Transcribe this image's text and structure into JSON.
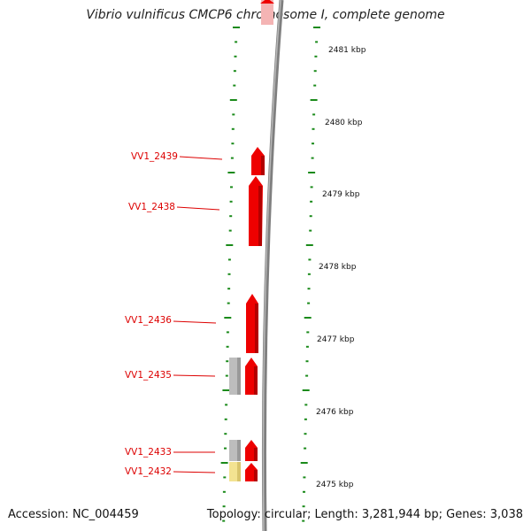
{
  "title": "Vibrio vulnificus CMCP6 chromosome I, complete genome",
  "accession": "Accession: NC_004459",
  "topology": "Topology: circular; Length: 3,281,944 bp; Genes: 3,038",
  "colors": {
    "gene_forward": "#ee0000",
    "gene_other": "#b8b8b8",
    "gene_yellow": "#f3e391",
    "label": "#dd0000",
    "tick": "#1a8a1a",
    "backbone": "#7a7a7a"
  },
  "scale_labels": [
    "2481 kbp",
    "2480 kbp",
    "2479 kbp",
    "2478 kbp",
    "2477 kbp",
    "2476 kbp",
    "2475 kbp"
  ],
  "genes": [
    {
      "id": "VV1_2439",
      "strand": "forward",
      "color": "red"
    },
    {
      "id": "VV1_2438",
      "strand": "forward",
      "color": "red"
    },
    {
      "id": "VV1_2436",
      "strand": "forward",
      "color": "red"
    },
    {
      "id": "VV1_2435",
      "strand": "forward",
      "color": "red"
    },
    {
      "id": "VV1_2433",
      "strand": "forward",
      "color": "red"
    },
    {
      "id": "VV1_2432",
      "strand": "forward",
      "color": "red"
    }
  ],
  "unlabeled_features": [
    {
      "name": "gray-block-2435",
      "color": "gray"
    },
    {
      "name": "gray-block-2433",
      "color": "gray"
    },
    {
      "name": "yellow-block-2432",
      "color": "yellow"
    },
    {
      "name": "top-red-block",
      "color": "red"
    }
  ]
}
